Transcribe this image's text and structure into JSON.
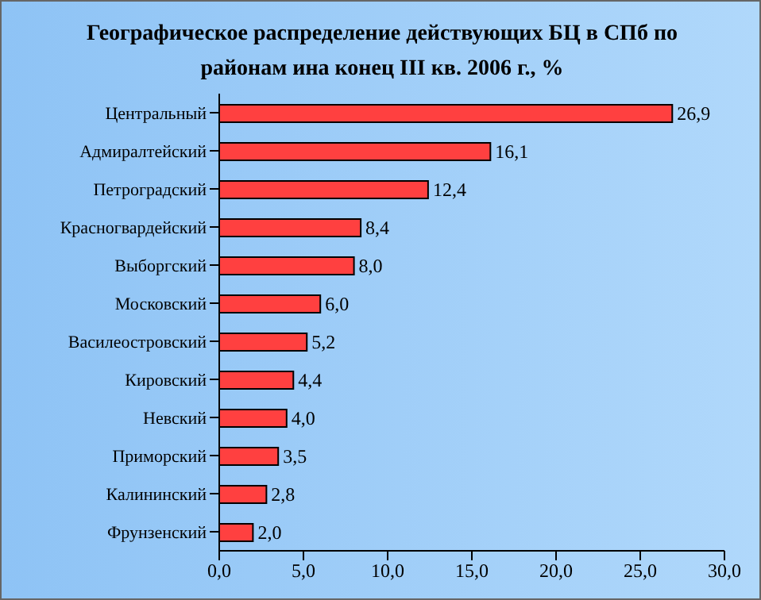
{
  "chart_data": {
    "type": "bar",
    "orientation": "horizontal",
    "title": "Географическое распределение действующих БЦ в СПб по районам ина конец III кв. 2006 г., %",
    "categories": [
      "Центральный",
      "Адмиралтейский",
      "Петроградский",
      "Красногвардейский",
      "Выборгский",
      "Московский",
      "Василеостровский",
      "Кировский",
      "Невский",
      "Приморский",
      "Калининский",
      "Фрунзенский"
    ],
    "values": [
      26.9,
      16.1,
      12.4,
      8.4,
      8.0,
      6.0,
      5.2,
      4.4,
      4.0,
      3.5,
      2.8,
      2.0
    ],
    "value_labels": [
      "26,9",
      "16,1",
      "12,4",
      "8,4",
      "8,0",
      "6,0",
      "5,2",
      "4,4",
      "4,0",
      "3,5",
      "2,8",
      "2,0"
    ],
    "color": "#ff4040",
    "xlim": [
      0,
      30
    ],
    "xticks": [
      {
        "value": 0,
        "label": "0,0"
      },
      {
        "value": 5,
        "label": "5,0"
      },
      {
        "value": 10,
        "label": "10,0"
      },
      {
        "value": 15,
        "label": "15,0"
      },
      {
        "value": 20,
        "label": "20,0"
      },
      {
        "value": 25,
        "label": "25,0"
      },
      {
        "value": 30,
        "label": "30,0"
      }
    ],
    "grid": false,
    "legend": false
  }
}
